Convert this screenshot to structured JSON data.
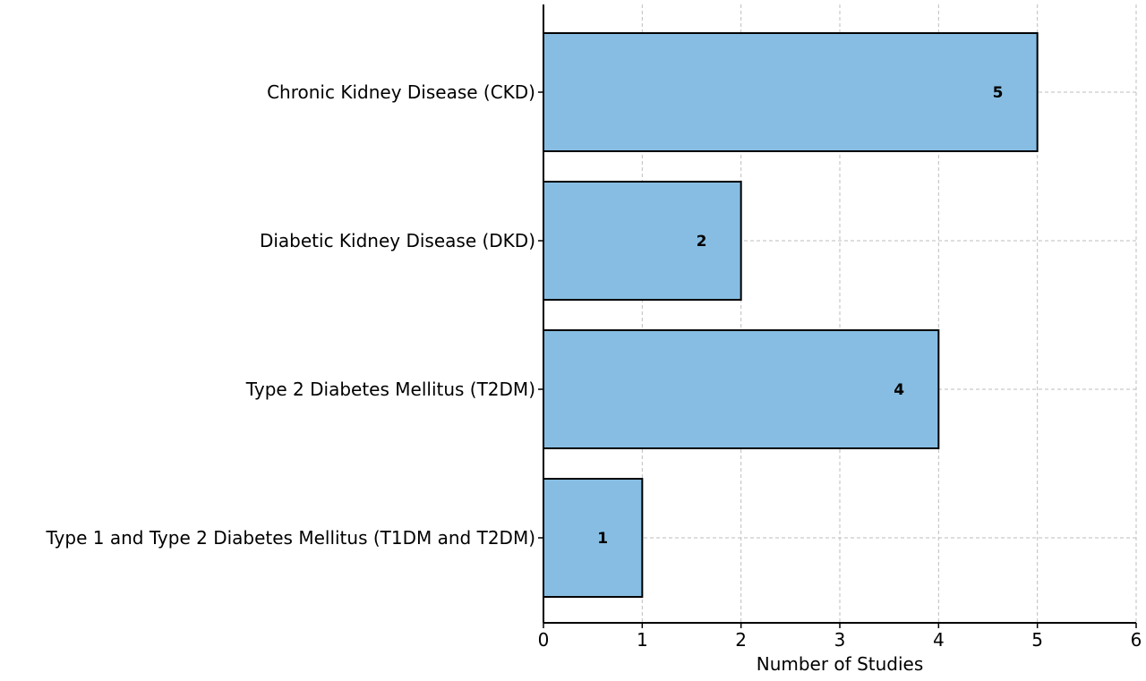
{
  "chart_data": {
    "type": "bar",
    "orientation": "horizontal",
    "title": "",
    "xlabel": "Number of Studies",
    "ylabel": "",
    "categories": [
      "Chronic Kidney Disease (CKD)",
      "Diabetic Kidney Disease (DKD)",
      "Type 2 Diabetes Mellitus (T2DM)",
      "Type 1 and Type 2 Diabetes Mellitus (T1DM and T2DM)"
    ],
    "values": [
      5,
      2,
      4,
      1
    ],
    "value_labels": [
      "5",
      "2",
      "4",
      "1"
    ],
    "xlim": [
      0,
      6
    ],
    "xticks": [
      0,
      1,
      2,
      3,
      4,
      5,
      6
    ],
    "xtick_labels": [
      "0",
      "1",
      "2",
      "3",
      "4",
      "5",
      "6"
    ],
    "grid": true,
    "legend": "none",
    "colors": {
      "bar_fill": "#87bde2",
      "bar_edge": "#000000",
      "grid": "#bdbdbd"
    }
  }
}
